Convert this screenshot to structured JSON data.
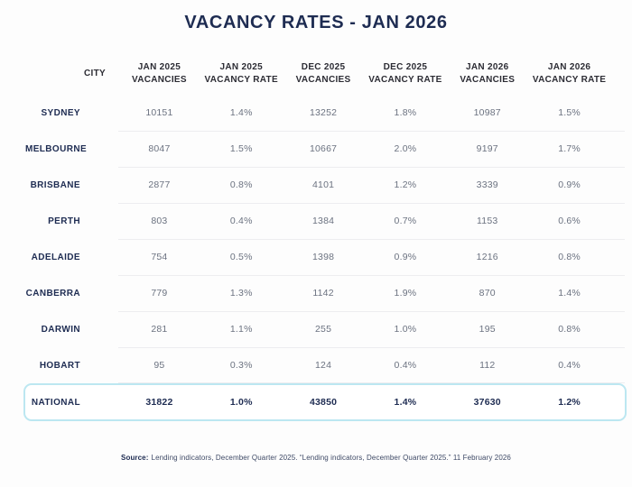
{
  "title": "VACANCY RATES - JAN 2026",
  "table": {
    "headers": [
      {
        "line1": "CITY",
        "line2": ""
      },
      {
        "line1": "JAN 2025",
        "line2": "VACANCIES"
      },
      {
        "line1": "JAN 2025",
        "line2": "VACANCY RATE"
      },
      {
        "line1": "DEC 2025",
        "line2": "VACANCIES"
      },
      {
        "line1": "DEC 2025",
        "line2": "VACANCY RATE"
      },
      {
        "line1": "JAN 2026",
        "line2": "VACANCIES"
      },
      {
        "line1": "JAN 2026",
        "line2": "VACANCY RATE"
      }
    ],
    "rows": [
      {
        "city": "SYDNEY",
        "values": [
          "10151",
          "1.4%",
          "13252",
          "1.8%",
          "10987",
          "1.5%"
        ]
      },
      {
        "city": "MELBOURNE",
        "values": [
          "8047",
          "1.5%",
          "10667",
          "2.0%",
          "9197",
          "1.7%"
        ]
      },
      {
        "city": "BRISBANE",
        "values": [
          "2877",
          "0.8%",
          "4101",
          "1.2%",
          "3339",
          "0.9%"
        ]
      },
      {
        "city": "PERTH",
        "values": [
          "803",
          "0.4%",
          "1384",
          "0.7%",
          "1153",
          "0.6%"
        ]
      },
      {
        "city": "ADELAIDE",
        "values": [
          "754",
          "0.5%",
          "1398",
          "0.9%",
          "1216",
          "0.8%"
        ]
      },
      {
        "city": "CANBERRA",
        "values": [
          "779",
          "1.3%",
          "1142",
          "1.9%",
          "870",
          "1.4%"
        ]
      },
      {
        "city": "DARWIN",
        "values": [
          "281",
          "1.1%",
          "255",
          "1.0%",
          "195",
          "0.8%"
        ]
      },
      {
        "city": "HOBART",
        "values": [
          "95",
          "0.3%",
          "124",
          "0.4%",
          "112",
          "0.4%"
        ]
      }
    ],
    "national": {
      "city": "NATIONAL",
      "values": [
        "31822",
        "1.0%",
        "43850",
        "1.4%",
        "37630",
        "1.2%"
      ]
    }
  },
  "footer": {
    "label": "Source:",
    "text": "Lending indicators, December Quarter 2025. “Lending indicators, December Quarter 2025.” 11 February 2026"
  },
  "colors": {
    "navy": "#1e2c52",
    "header_ink": "#2c2c34",
    "gray": "#6b7280",
    "divider": "#ededf0",
    "border_cyan": "#bce7f1",
    "bg": "#fdfdfd"
  },
  "chart_data": {
    "type": "table",
    "title": "VACANCY RATES - JAN 2026",
    "columns": [
      "CITY",
      "JAN 2025 VACANCIES",
      "JAN 2025 VACANCY RATE",
      "DEC 2025 VACANCIES",
      "DEC 2025 VACANCY RATE",
      "JAN 2026 VACANCIES",
      "JAN 2026 VACANCY RATE"
    ],
    "rows": [
      {
        "city": "SYDNEY",
        "jan2025_vacancies": 10151,
        "jan2025_rate_pct": 1.4,
        "dec2025_vacancies": 13252,
        "dec2025_rate_pct": 1.8,
        "jan2026_vacancies": 10987,
        "jan2026_rate_pct": 1.5
      },
      {
        "city": "MELBOURNE",
        "jan2025_vacancies": 8047,
        "jan2025_rate_pct": 1.5,
        "dec2025_vacancies": 10667,
        "dec2025_rate_pct": 2.0,
        "jan2026_vacancies": 9197,
        "jan2026_rate_pct": 1.7
      },
      {
        "city": "BRISBANE",
        "jan2025_vacancies": 2877,
        "jan2025_rate_pct": 0.8,
        "dec2025_vacancies": 4101,
        "dec2025_rate_pct": 1.2,
        "jan2026_vacancies": 3339,
        "jan2026_rate_pct": 0.9
      },
      {
        "city": "PERTH",
        "jan2025_vacancies": 803,
        "jan2025_rate_pct": 0.4,
        "dec2025_vacancies": 1384,
        "dec2025_rate_pct": 0.7,
        "jan2026_vacancies": 1153,
        "jan2026_rate_pct": 0.6
      },
      {
        "city": "ADELAIDE",
        "jan2025_vacancies": 754,
        "jan2025_rate_pct": 0.5,
        "dec2025_vacancies": 1398,
        "dec2025_rate_pct": 0.9,
        "jan2026_vacancies": 1216,
        "jan2026_rate_pct": 0.8
      },
      {
        "city": "CANBERRA",
        "jan2025_vacancies": 779,
        "jan2025_rate_pct": 1.3,
        "dec2025_vacancies": 1142,
        "dec2025_rate_pct": 1.9,
        "jan2026_vacancies": 870,
        "jan2026_rate_pct": 1.4
      },
      {
        "city": "DARWIN",
        "jan2025_vacancies": 281,
        "jan2025_rate_pct": 1.1,
        "dec2025_vacancies": 255,
        "dec2025_rate_pct": 1.0,
        "jan2026_vacancies": 195,
        "jan2026_rate_pct": 0.8
      },
      {
        "city": "HOBART",
        "jan2025_vacancies": 95,
        "jan2025_rate_pct": 0.3,
        "dec2025_vacancies": 124,
        "dec2025_rate_pct": 0.4,
        "jan2026_vacancies": 112,
        "jan2026_rate_pct": 0.4
      },
      {
        "city": "NATIONAL",
        "jan2025_vacancies": 31822,
        "jan2025_rate_pct": 1.0,
        "dec2025_vacancies": 43850,
        "dec2025_rate_pct": 1.4,
        "jan2026_vacancies": 37630,
        "jan2026_rate_pct": 1.2
      }
    ],
    "source": "Source: Lending indicators, December Quarter 2025. “Lending indicators, December Quarter 2025.” 11 February 2026"
  }
}
